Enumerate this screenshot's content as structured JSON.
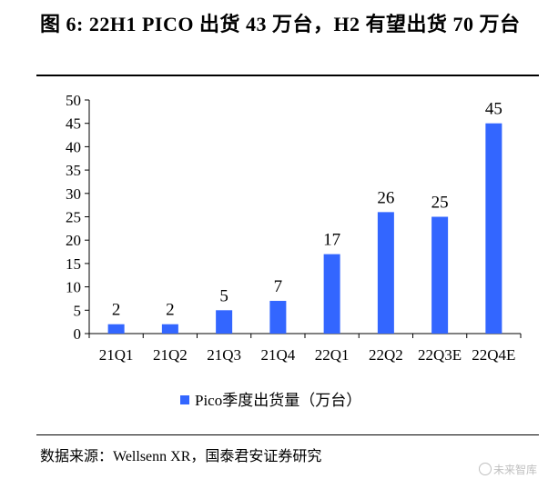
{
  "title": "图 6: 22H1 PICO 出货 43 万台，H2 有望出货 70 万台",
  "chart_data": {
    "type": "bar",
    "categories": [
      "21Q1",
      "21Q2",
      "21Q3",
      "21Q4",
      "22Q1",
      "22Q2",
      "22Q3E",
      "22Q4E"
    ],
    "series": [
      {
        "name": "Pico季度出货量（万台）",
        "values": [
          2,
          2,
          5,
          7,
          17,
          26,
          25,
          45
        ],
        "color": "#3366FF"
      }
    ],
    "data_labels": [
      "2",
      "2",
      "5",
      "7",
      "17",
      "26",
      "25",
      "45"
    ],
    "yticks": [
      "0",
      "5",
      "10",
      "15",
      "20",
      "25",
      "30",
      "35",
      "40",
      "45",
      "50"
    ],
    "ylim": [
      0,
      50
    ],
    "grid": false,
    "legend_position": "bottom"
  },
  "source": "数据来源：Wellsenn XR，国泰君安证券研究",
  "watermark": "未来智库"
}
